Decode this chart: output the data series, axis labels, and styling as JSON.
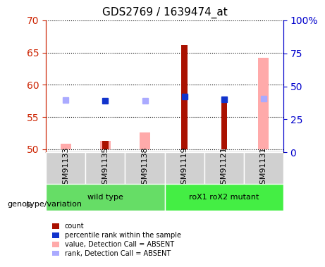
{
  "title": "GDS2769 / 1639474_at",
  "samples": [
    "GSM91133",
    "GSM91135",
    "GSM91138",
    "GSM91119",
    "GSM91121",
    "GSM91131"
  ],
  "groups": [
    {
      "label": "wild type",
      "samples": [
        "GSM91133",
        "GSM91135",
        "GSM91138"
      ],
      "color": "#66dd66"
    },
    {
      "label": "roX1 roX2 mutant",
      "samples": [
        "GSM91119",
        "GSM91121",
        "GSM91131"
      ],
      "color": "#44ee44"
    }
  ],
  "ylim_left": [
    49.5,
    70
  ],
  "ylim_right": [
    0,
    100
  ],
  "yticks_left": [
    50,
    55,
    60,
    65,
    70
  ],
  "yticks_right": [
    0,
    25,
    50,
    75,
    100
  ],
  "bar_width": 0.3,
  "bar_base": 50,
  "count_color": "#aa1100",
  "percentile_color": "#1133cc",
  "value_absent_color": "#ffaaaa",
  "rank_absent_color": "#aaaaff",
  "count_values": [
    50.0,
    51.3,
    50.0,
    66.2,
    57.3,
    50.0
  ],
  "percentile_values": [
    57.6,
    57.5,
    57.5,
    58.2,
    57.7,
    57.9
  ],
  "value_absent_values": [
    50.8,
    51.3,
    52.6,
    50.0,
    50.0,
    64.2
  ],
  "rank_absent_values": [
    57.6,
    57.5,
    57.5,
    58.2,
    57.7,
    57.9
  ],
  "show_count": [
    false,
    true,
    false,
    true,
    true,
    false
  ],
  "show_percentile": [
    false,
    true,
    false,
    true,
    true,
    false
  ],
  "show_value_absent": [
    true,
    true,
    true,
    false,
    false,
    true
  ],
  "show_rank_absent": [
    true,
    false,
    true,
    false,
    false,
    true
  ],
  "legend_items": [
    {
      "label": "count",
      "color": "#aa1100"
    },
    {
      "label": "percentile rank within the sample",
      "color": "#1133cc"
    },
    {
      "label": "value, Detection Call = ABSENT",
      "color": "#ffaaaa"
    },
    {
      "label": "rank, Detection Call = ABSENT",
      "color": "#aaaaff"
    }
  ],
  "genotype_label": "genotype/variation",
  "bg_plot": "#ffffff",
  "grid_color": "#000000",
  "left_axis_color": "#cc2200",
  "right_axis_color": "#0000cc"
}
